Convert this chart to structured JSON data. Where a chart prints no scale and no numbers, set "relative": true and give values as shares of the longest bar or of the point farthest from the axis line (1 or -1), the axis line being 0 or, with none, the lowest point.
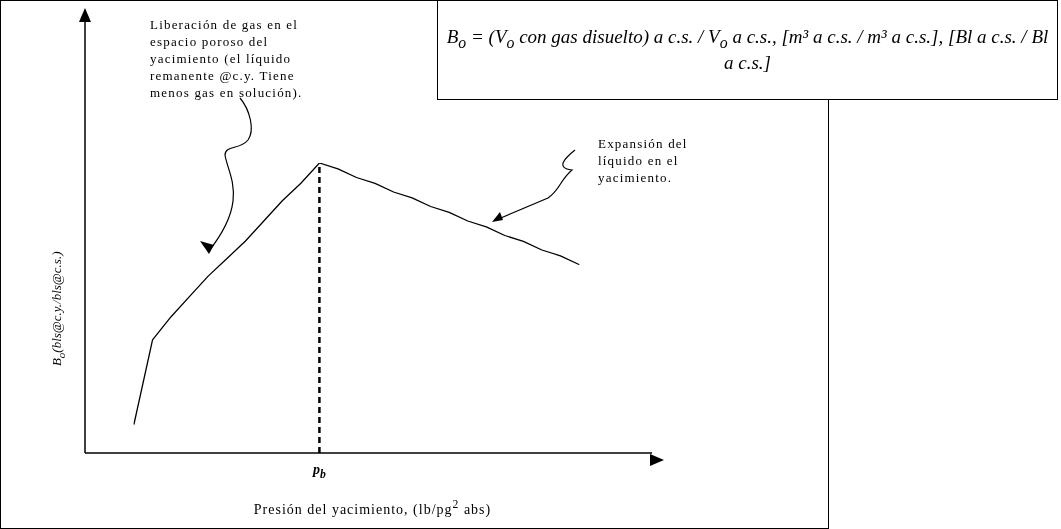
{
  "chart_data": {
    "type": "line",
    "relative": true,
    "xlabel": "Presión del yacimiento, (lb/pg$^{2}$ abs)",
    "ylabel": "B$_{o}$(bls@c.y./bls@c.s.)",
    "categories": [
      null,
      null,
      null,
      null,
      null,
      null,
      null,
      null,
      null,
      null,
      null,
      null,
      null,
      null,
      null,
      null,
      null,
      null,
      null,
      null,
      null,
      null,
      null,
      null,
      null
    ],
    "series": [
      {
        "color": "#000000",
        "values": [
          0.1,
          0.39,
          0.47,
          0.54,
          0.61,
          0.67,
          0.73,
          0.8,
          0.87,
          0.93,
          1,
          0.98,
          0.95,
          0.93,
          0.9,
          0.88,
          0.85,
          0.83,
          0.8,
          0.78,
          0.75,
          0.73,
          0.7,
          0.68,
          0.65
        ]
      }
    ],
    "annotations": [
      "B$_{o}$ = (V$_{o}$ con gas disuelto) a c.s. / V$_{o}$ a c.s., [m³ a c.s. / m³ a c.s.], [Bl a c.s. / Bl a c.s.]",
      "Liberación de gas en el espacio poroso del yacimiento (el líquido remanente @c.y. Tiene menos gas en solución).",
      "Expansión del líquido en el yacimiento.",
      "p$_{b}$"
    ],
    "grid": false,
    "legend": false,
    "marker": "none",
    "line_style": "solid"
  }
}
